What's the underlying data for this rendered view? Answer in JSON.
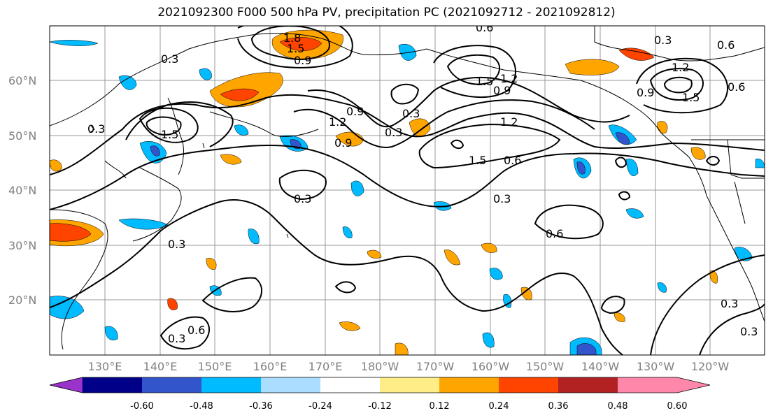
{
  "title": "2021092300 F000 500 hPa PV, precipitation PC (2021092712 - 2021092812)",
  "map": {
    "lat_labels": [
      "60°N",
      "50°N",
      "40°N",
      "30°N",
      "20°N"
    ],
    "lon_labels": [
      "130°E",
      "140°E",
      "150°E",
      "160°E",
      "170°E",
      "180°W",
      "170°W",
      "160°W",
      "150°W",
      "140°W",
      "130°W",
      "120°W"
    ],
    "contour_labels": [
      "0.3",
      "0.6",
      "0.9",
      "1.2",
      "1.5",
      "1.8"
    ],
    "grid": true
  },
  "colorbar": {
    "ticks": [
      "-0.60",
      "-0.48",
      "-0.36",
      "-0.24",
      "-0.12",
      "0.12",
      "0.24",
      "0.36",
      "0.48",
      "0.60"
    ],
    "colors": [
      "#9933cc",
      "#000088",
      "#3355cc",
      "#00bbff",
      "#aaddff",
      "#ffffff",
      "#ffee88",
      "#ffa500",
      "#ff4400",
      "#b22222",
      "#ff88aa"
    ],
    "extend": "both"
  }
}
